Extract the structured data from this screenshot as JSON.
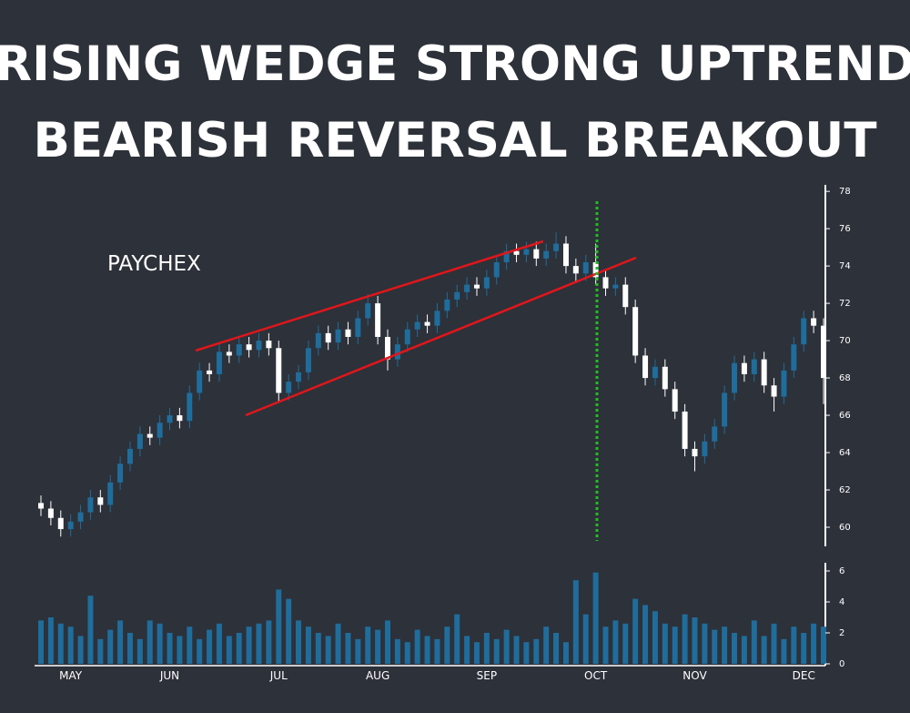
{
  "chart_data": {
    "type": "candlestick",
    "title": [
      "RISING WEDGE STRONG UPTREND",
      "BEARISH REVERSAL BREAKOUT"
    ],
    "annotation": "PAYCHEX",
    "up_color": "#1f6d9c",
    "down_color": "#ffffff",
    "volume_color": "#1f6d9c",
    "categories": [
      null,
      null,
      null,
      "MAY",
      null,
      null,
      null,
      null,
      null,
      null,
      null,
      null,
      null,
      "JUN",
      null,
      null,
      null,
      null,
      null,
      null,
      null,
      null,
      null,
      null,
      "JUL",
      null,
      null,
      null,
      null,
      null,
      null,
      null,
      null,
      null,
      "AUG",
      null,
      null,
      null,
      null,
      null,
      null,
      null,
      null,
      null,
      null,
      "SEP",
      null,
      null,
      null,
      null,
      null,
      null,
      null,
      null,
      null,
      null,
      "OCT",
      null,
      null,
      null,
      null,
      null,
      null,
      null,
      null,
      null,
      "NOV",
      null,
      null,
      null,
      null,
      null,
      null,
      null,
      null,
      null,
      null,
      "DEC",
      null,
      null
    ],
    "open": [
      61.3,
      61.0,
      60.5,
      59.9,
      60.3,
      60.8,
      61.6,
      61.2,
      62.4,
      63.4,
      64.2,
      65.0,
      64.8,
      65.6,
      66.0,
      65.7,
      67.2,
      68.4,
      68.2,
      69.4,
      69.2,
      69.8,
      69.5,
      70.0,
      69.6,
      67.2,
      67.8,
      68.3,
      69.6,
      70.4,
      69.9,
      70.6,
      70.2,
      71.2,
      72.0,
      70.2,
      69.0,
      69.8,
      70.6,
      71.0,
      70.8,
      71.6,
      72.2,
      72.6,
      73.0,
      72.8,
      73.4,
      74.2,
      74.8,
      74.6,
      74.9,
      74.4,
      74.8,
      75.2,
      74.0,
      73.6,
      74.2,
      73.4,
      72.8,
      73.0,
      71.8,
      69.2,
      68.0,
      68.6,
      67.4,
      66.2,
      64.2,
      63.8,
      64.6,
      65.4,
      67.2,
      68.8,
      68.2,
      69.0,
      67.6,
      67.0,
      68.4,
      69.8,
      71.2,
      70.8
    ],
    "high": [
      61.7,
      61.4,
      60.9,
      60.7,
      61.2,
      62.0,
      62.0,
      62.8,
      63.8,
      64.6,
      65.4,
      65.4,
      66.0,
      66.4,
      66.4,
      67.6,
      68.8,
      68.8,
      69.8,
      69.8,
      70.2,
      70.2,
      70.4,
      70.4,
      70.0,
      68.2,
      68.7,
      70.0,
      70.8,
      70.8,
      71.0,
      71.0,
      71.6,
      72.5,
      72.4,
      70.6,
      70.2,
      71.0,
      71.4,
      71.4,
      72.0,
      72.6,
      73.0,
      73.4,
      73.4,
      73.8,
      74.6,
      75.2,
      75.2,
      75.3,
      75.3,
      75.2,
      75.8,
      75.6,
      74.4,
      74.6,
      75.2,
      73.8,
      73.4,
      73.4,
      72.2,
      69.6,
      69.0,
      69.0,
      67.8,
      66.6,
      64.6,
      65.0,
      65.8,
      67.6,
      69.2,
      69.2,
      69.4,
      69.4,
      68.0,
      68.8,
      70.2,
      71.6,
      71.6,
      71.2
    ],
    "low": [
      60.6,
      60.1,
      59.5,
      59.5,
      59.9,
      60.4,
      60.8,
      60.8,
      62.0,
      63.0,
      63.8,
      64.4,
      64.4,
      65.2,
      65.3,
      65.3,
      66.8,
      67.8,
      67.8,
      68.8,
      68.8,
      69.1,
      69.1,
      69.2,
      66.7,
      66.8,
      67.4,
      67.9,
      69.2,
      69.5,
      69.5,
      69.8,
      69.8,
      70.8,
      69.8,
      68.4,
      68.6,
      69.4,
      70.2,
      70.4,
      70.4,
      71.2,
      71.8,
      72.2,
      72.4,
      72.4,
      73.0,
      73.8,
      74.2,
      74.2,
      74.0,
      74.0,
      74.4,
      73.6,
      73.2,
      73.2,
      73.0,
      72.4,
      72.4,
      71.4,
      68.8,
      67.6,
      67.6,
      67.0,
      65.8,
      63.8,
      63.0,
      63.4,
      64.2,
      65.0,
      66.8,
      67.8,
      67.8,
      67.2,
      66.2,
      66.6,
      68.0,
      69.4,
      70.4,
      66.6
    ],
    "close": [
      61.0,
      60.5,
      59.9,
      60.3,
      60.8,
      61.6,
      61.2,
      62.4,
      63.4,
      64.2,
      65.0,
      64.8,
      65.6,
      66.0,
      65.7,
      67.2,
      68.4,
      68.2,
      69.4,
      69.2,
      69.8,
      69.5,
      70.0,
      69.6,
      67.2,
      67.8,
      68.3,
      69.6,
      70.4,
      69.9,
      70.6,
      70.2,
      71.2,
      72.0,
      70.2,
      69.0,
      69.8,
      70.6,
      71.0,
      70.8,
      71.6,
      72.2,
      72.6,
      73.0,
      72.8,
      73.4,
      74.2,
      74.8,
      74.6,
      74.9,
      74.4,
      74.8,
      75.2,
      74.0,
      73.6,
      74.2,
      73.4,
      72.8,
      73.0,
      71.8,
      69.2,
      68.0,
      68.6,
      67.4,
      66.2,
      64.2,
      63.8,
      64.6,
      65.4,
      67.2,
      68.8,
      68.2,
      69.0,
      67.6,
      67.0,
      68.4,
      69.8,
      71.2,
      70.8,
      68.0
    ],
    "volume": [
      2.8,
      3.0,
      2.6,
      2.4,
      1.8,
      4.4,
      1.6,
      2.2,
      2.8,
      2.0,
      1.6,
      2.8,
      2.6,
      2.0,
      1.8,
      2.4,
      1.6,
      2.2,
      2.6,
      1.8,
      2.0,
      2.4,
      2.6,
      2.8,
      4.8,
      4.2,
      2.8,
      2.4,
      2.0,
      1.8,
      2.6,
      2.0,
      1.6,
      2.4,
      2.2,
      2.8,
      1.6,
      1.4,
      2.2,
      1.8,
      1.6,
      2.4,
      3.2,
      1.8,
      1.4,
      2.0,
      1.6,
      2.2,
      1.8,
      1.4,
      1.6,
      2.4,
      2.0,
      1.4,
      5.4,
      3.2,
      5.9,
      2.4,
      2.8,
      2.6,
      4.2,
      3.8,
      3.4,
      2.6,
      2.4,
      3.2,
      3.0,
      2.6,
      2.2,
      2.4,
      2.0,
      1.8,
      2.8,
      1.8,
      2.6,
      1.6,
      2.4,
      2.0,
      2.6,
      2.4
    ],
    "ylim": [
      59,
      78.3
    ],
    "yticks": [
      60,
      62,
      64,
      66,
      68,
      70,
      72,
      74,
      76,
      78
    ],
    "volume_ylim": [
      0,
      6.5
    ],
    "volume_ticks": [
      0,
      2,
      4,
      6
    ]
  }
}
